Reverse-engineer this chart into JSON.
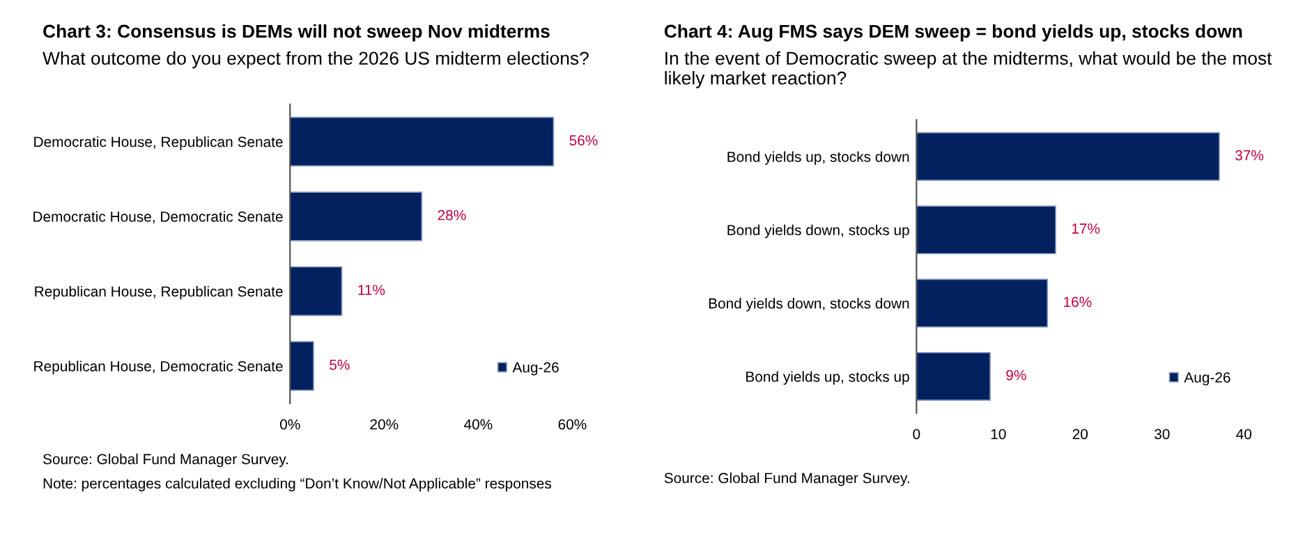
{
  "chart_data": [
    {
      "type": "bar",
      "orientation": "horizontal",
      "title": "Chart 3: Consensus is DEMs will not sweep Nov midterms",
      "subtitle": "What outcome do you expect from the 2026 US midterm elections?",
      "categories": [
        "Democratic House, Republican Senate",
        "Democratic House, Democratic Senate",
        "Republican House, Republican Senate",
        "Republican House, Democratic Senate"
      ],
      "series": [
        {
          "name": "Aug-26",
          "color": "#03215f",
          "values": [
            56,
            28,
            11,
            5
          ],
          "value_labels": [
            "56%",
            "28%",
            "11%",
            "5%"
          ]
        }
      ],
      "xlim": [
        0,
        60
      ],
      "xticks": [
        {
          "value": 0,
          "label": "0%"
        },
        {
          "value": 20,
          "label": "20%"
        },
        {
          "value": 40,
          "label": "40%"
        },
        {
          "value": 60,
          "label": "60%"
        }
      ],
      "grid": false,
      "legend": "bottom right",
      "annotations": [
        "Source: Global Fund Manager Survey.",
        "Note: percentages calculated excluding “Don’t Know/Not Applicable” responses"
      ]
    },
    {
      "type": "bar",
      "orientation": "horizontal",
      "title": "Chart 4: Aug FMS says DEM sweep = bond yields up, stocks down",
      "subtitle": "In the event of Democratic sweep at the midterms, what would be the most likely market reaction?",
      "categories": [
        "Bond yields up, stocks down",
        "Bond yields down, stocks up",
        "Bond yields down, stocks down",
        "Bond yields up, stocks up"
      ],
      "series": [
        {
          "name": "Aug-26",
          "color": "#03215f",
          "values": [
            37,
            17,
            16,
            9
          ],
          "value_labels": [
            "37%",
            "17%",
            "16%",
            "9%"
          ]
        }
      ],
      "xlim": [
        0,
        40
      ],
      "xticks": [
        0,
        10,
        20,
        30,
        40
      ],
      "grid": false,
      "legend": "bottom right",
      "annotations": [
        "Source: Global Fund Manager Survey."
      ]
    }
  ]
}
